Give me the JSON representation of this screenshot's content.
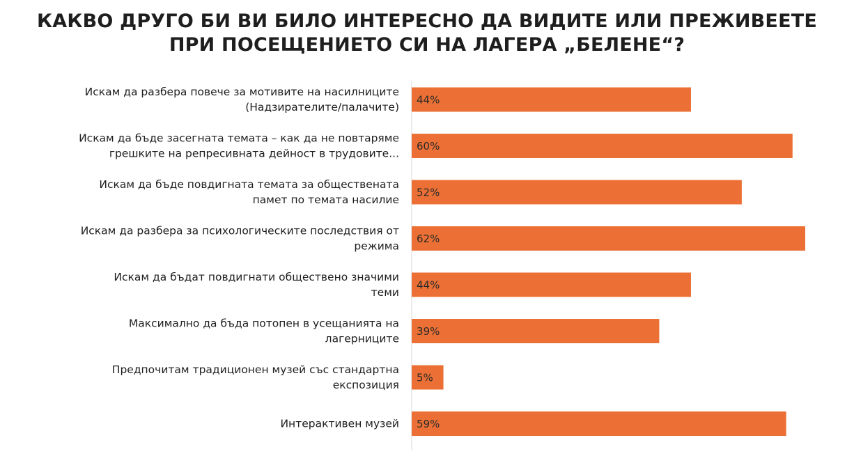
{
  "title_lines": [
    "КАКВО ДРУГО БИ ВИ БИЛО ИНТЕРЕСНО ДА ВИДИТЕ ИЛИ ПРЕЖИВЕЕТЕ",
    "ПРИ ПОСЕЩЕНИЕТО СИ НА ЛАГЕРА „БЕЛЕНЕ“?"
  ],
  "colors": {
    "bar": "#EC7035",
    "axis": "#d9d9d9"
  },
  "chart_data": {
    "type": "bar",
    "orientation": "horizontal",
    "title": "КАКВО ДРУГО БИ ВИ БИЛО ИНТЕРЕСНО ДА ВИДИТЕ ИЛИ ПРЕЖИВЕЕТЕ ПРИ ПОСЕЩЕНИЕТО СИ НА ЛАГЕРА „БЕЛЕНЕ“?",
    "categories": [
      [
        "Искам да разбера повече за мотивите на насилниците",
        "(Надзирателите/палачите)"
      ],
      [
        "Искам да бъде засегната темата – как да не повтаряме",
        "грешките на репресивната дейност в  трудовите..."
      ],
      [
        "Искам да бъде повдигната темата за обществената",
        "памет по темата насилие"
      ],
      [
        "Искам да разбера за психологическите последствия от",
        "режима"
      ],
      [
        "Искам да бъдат повдигнати обществено значими",
        "теми"
      ],
      [
        "Максимално да бъда потопен в усещанията на",
        "лагерниците"
      ],
      [
        "Предпочитам традиционен музей със стандартна",
        "експозиция"
      ],
      [
        "Интерактивен музей"
      ]
    ],
    "values": [
      44,
      60,
      52,
      62,
      44,
      39,
      5,
      59
    ],
    "data_labels": [
      "44%",
      "60%",
      "52%",
      "62%",
      "44%",
      "39%",
      "5%",
      "59%"
    ],
    "unit": "%",
    "xlim": [
      0,
      62
    ],
    "grid": false,
    "legend": "none"
  }
}
